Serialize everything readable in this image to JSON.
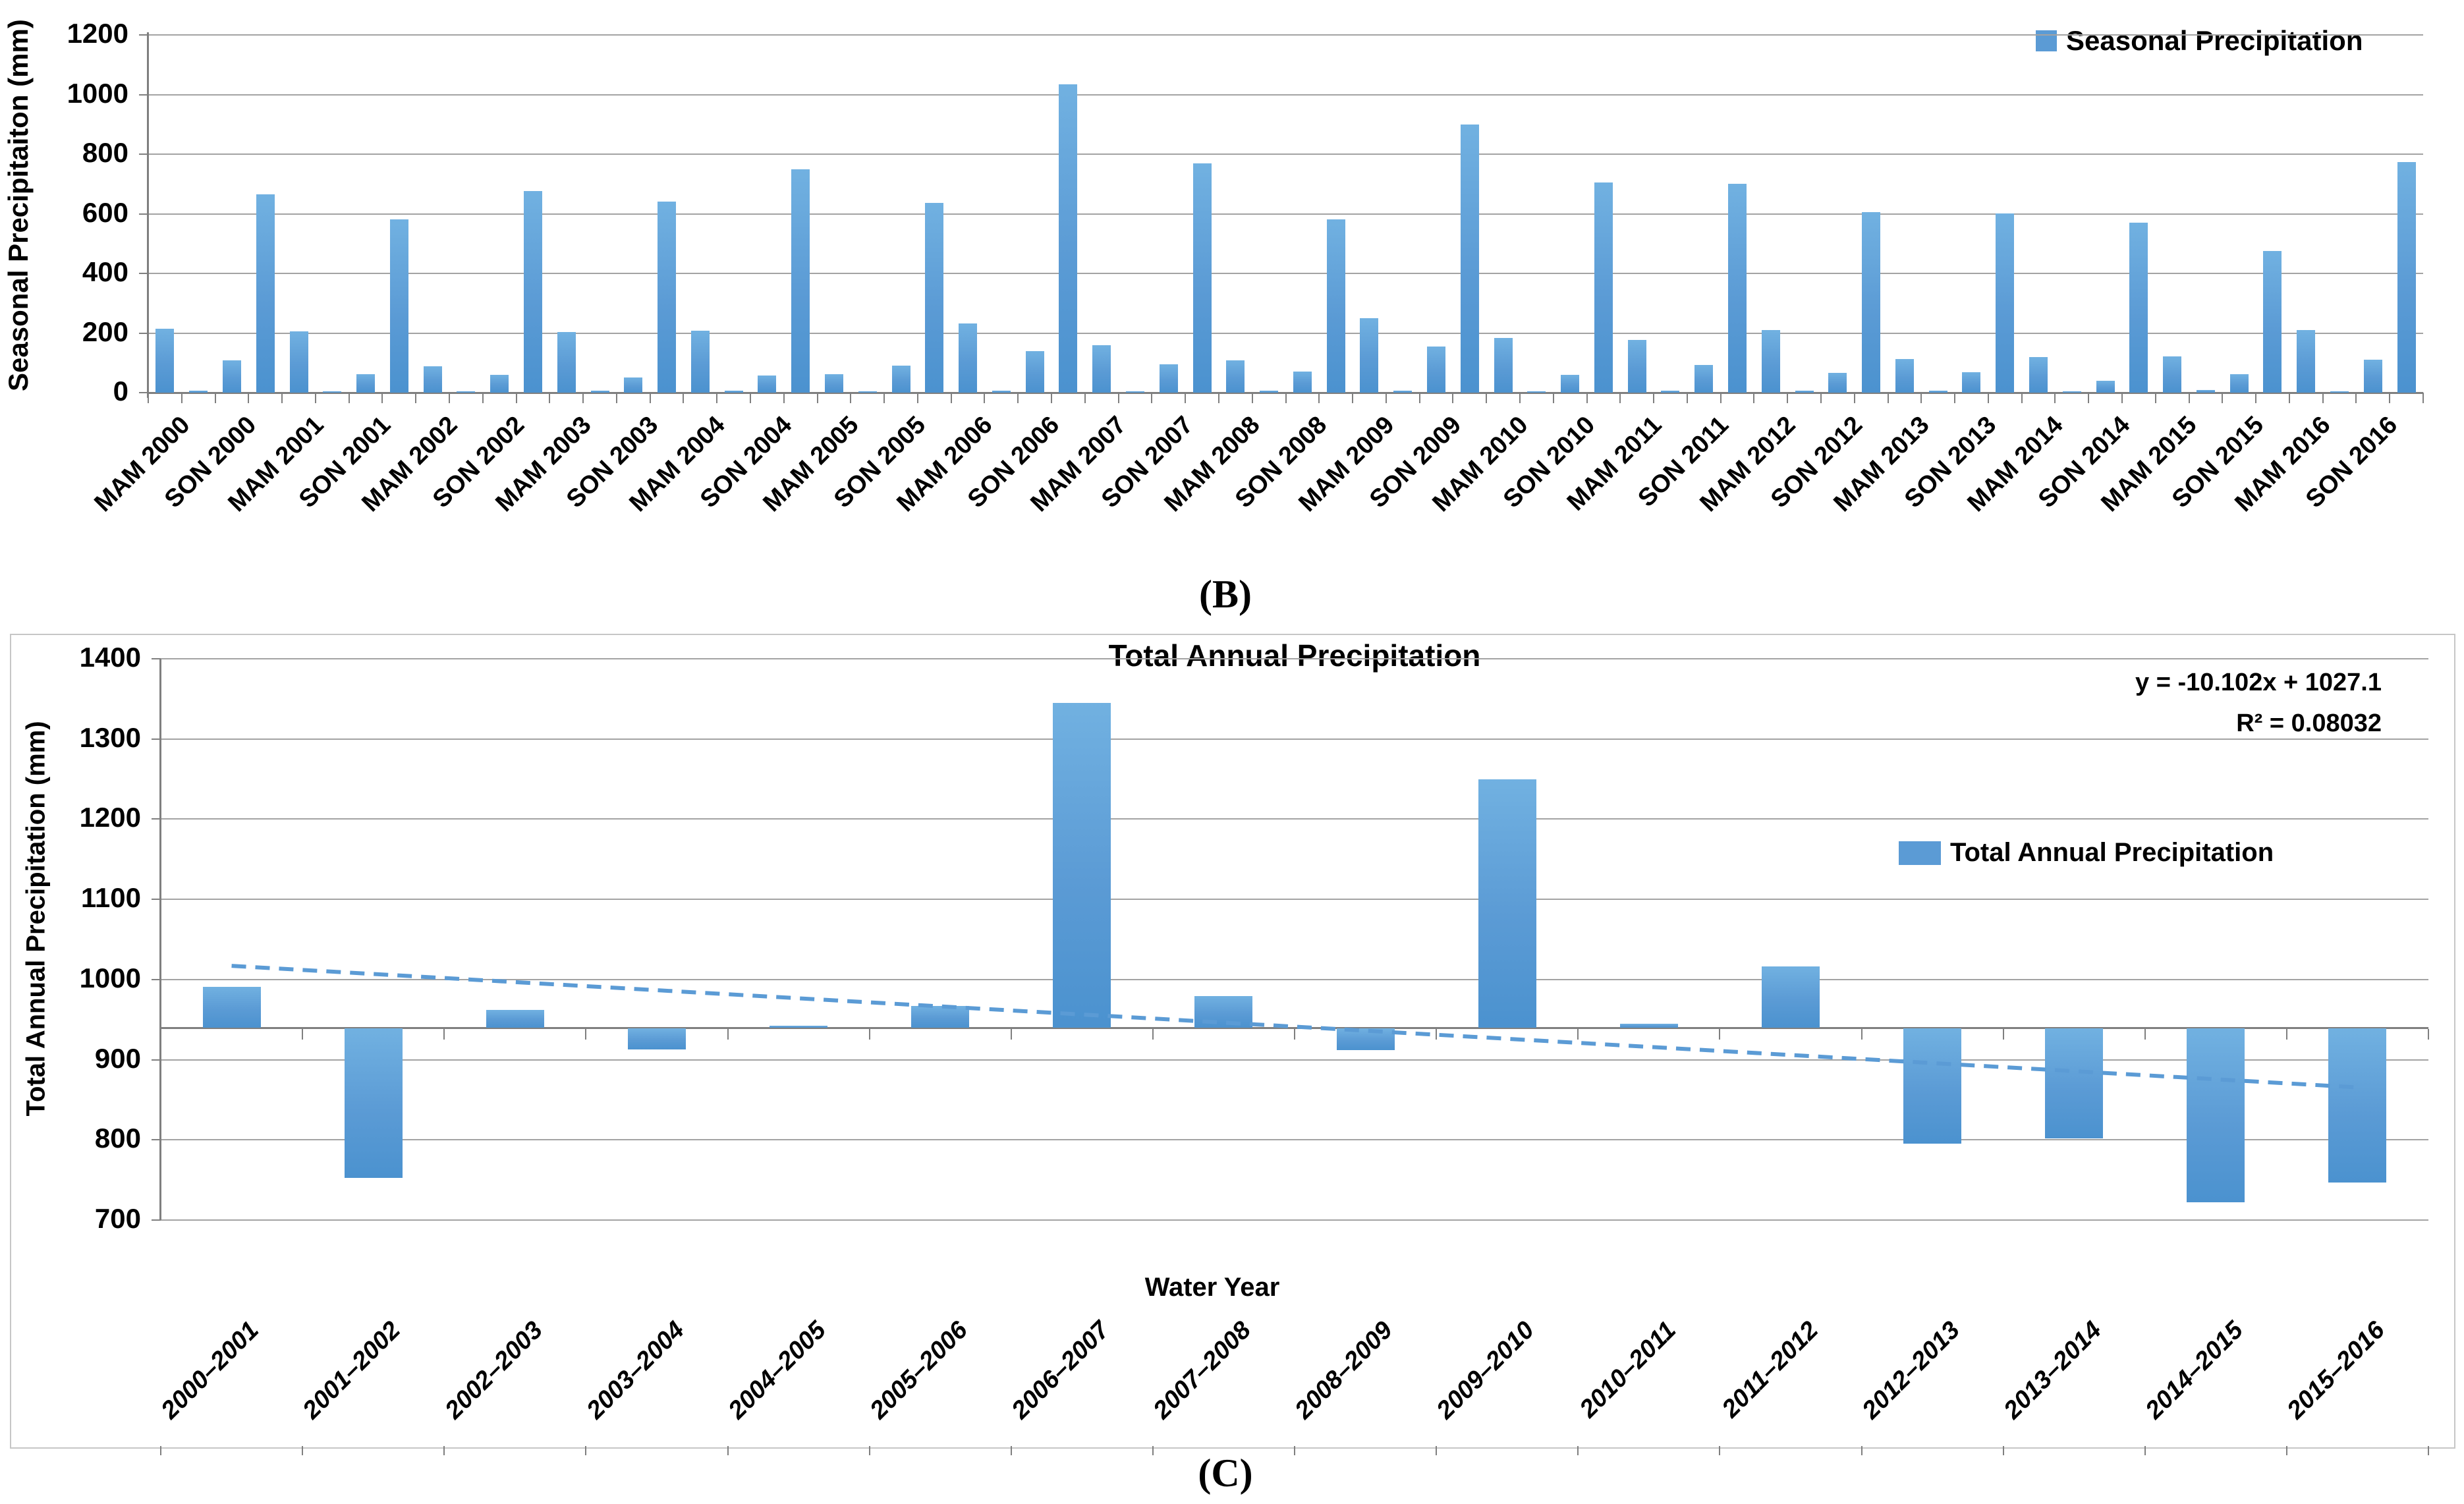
{
  "captions": {
    "b": "(B)",
    "c": "(C)"
  },
  "chart_data": [
    {
      "id": "seasonal-precipitation",
      "type": "bar",
      "panel": "B",
      "y_axis_title": "Seasonal Precipitaiton (mm)",
      "legend_label": "Seasonal Precipitation",
      "legend_position": "top-right",
      "ylim": [
        0,
        1200
      ],
      "ytick_step": 200,
      "y_tick_labels": [
        "0",
        "200",
        "400",
        "600",
        "800",
        "1000",
        "1200"
      ],
      "grid": true,
      "bar_color": "#5B9BD5",
      "x_tick_labels": [
        "MAM 2000",
        "SON 2000",
        "MAM 2001",
        "SON 2001",
        "MAM 2002",
        "SON 2002",
        "MAM 2003",
        "SON 2003",
        "MAM 2004",
        "SON 2004",
        "MAM 2005",
        "SON 2005",
        "MAM 2006",
        "SON 2006",
        "MAM 2007",
        "SON 2007",
        "MAM 2008",
        "SON 2008",
        "MAM 2009",
        "SON 2009",
        "MAM 2010",
        "SON 2010",
        "MAM 2011",
        "SON 2011",
        "MAM 2012",
        "SON 2012",
        "MAM 2013",
        "SON 2013",
        "MAM 2014",
        "SON 2014",
        "MAM 2015",
        "SON 2015",
        "MAM 2016",
        "SON 2016"
      ],
      "x_tick_labels_note": "labels sit under every other bar; intermediate seasonal bars are unlabeled",
      "values": [
        215,
        6,
        108,
        665,
        205,
        5,
        62,
        582,
        88,
        4,
        60,
        676,
        203,
        7,
        50,
        640,
        207,
        7,
        57,
        750,
        62,
        4,
        90,
        636,
        232,
        6,
        140,
        1035,
        160,
        5,
        95,
        768,
        109,
        6,
        71,
        582,
        249,
        6,
        154,
        900,
        183,
        5,
        59,
        705,
        176,
        6,
        92,
        700,
        209,
        7,
        66,
        605,
        112,
        6,
        68,
        601,
        120,
        5,
        40,
        570,
        122,
        8,
        62,
        475,
        210,
        5,
        110,
        773
      ]
    },
    {
      "id": "total-annual-precipitation",
      "type": "bar",
      "panel": "C",
      "title": "Total Annual Precipitation",
      "x_axis_title": "Water Year",
      "y_axis_title": "Total Annual Precipitation (mm)",
      "legend_label": "Total Annual Precipitation",
      "legend_position": "right-middle",
      "ylim": [
        700,
        1400
      ],
      "ytick_step": 100,
      "y_tick_labels": [
        "700",
        "800",
        "900",
        "1000",
        "1100",
        "1200",
        "1300",
        "1400"
      ],
      "axis_crossing_baseline": 940,
      "grid": true,
      "bar_color": "#5B9BD5",
      "categories": [
        "2000–2001",
        "2001–2002",
        "2002–2003",
        "2003–2004",
        "2004–2005",
        "2005–2006",
        "2006–2007",
        "2007–2008",
        "2008–2009",
        "2009–2010",
        "2010–2011",
        "2011–2012",
        "2012–2013",
        "2013–2014",
        "2014–2015",
        "2015–2016"
      ],
      "values": [
        991,
        753,
        962,
        914,
        942,
        967,
        1345,
        979,
        913,
        1250,
        945,
        1016,
        796,
        803,
        723,
        748
      ],
      "trendline": {
        "equation": "y = -10.102x + 1027.1",
        "r_squared": "R² = 0.08032",
        "slope": -10.102,
        "intercept": 1027.1,
        "style": "dashed",
        "color": "#5B9BD5"
      }
    }
  ]
}
